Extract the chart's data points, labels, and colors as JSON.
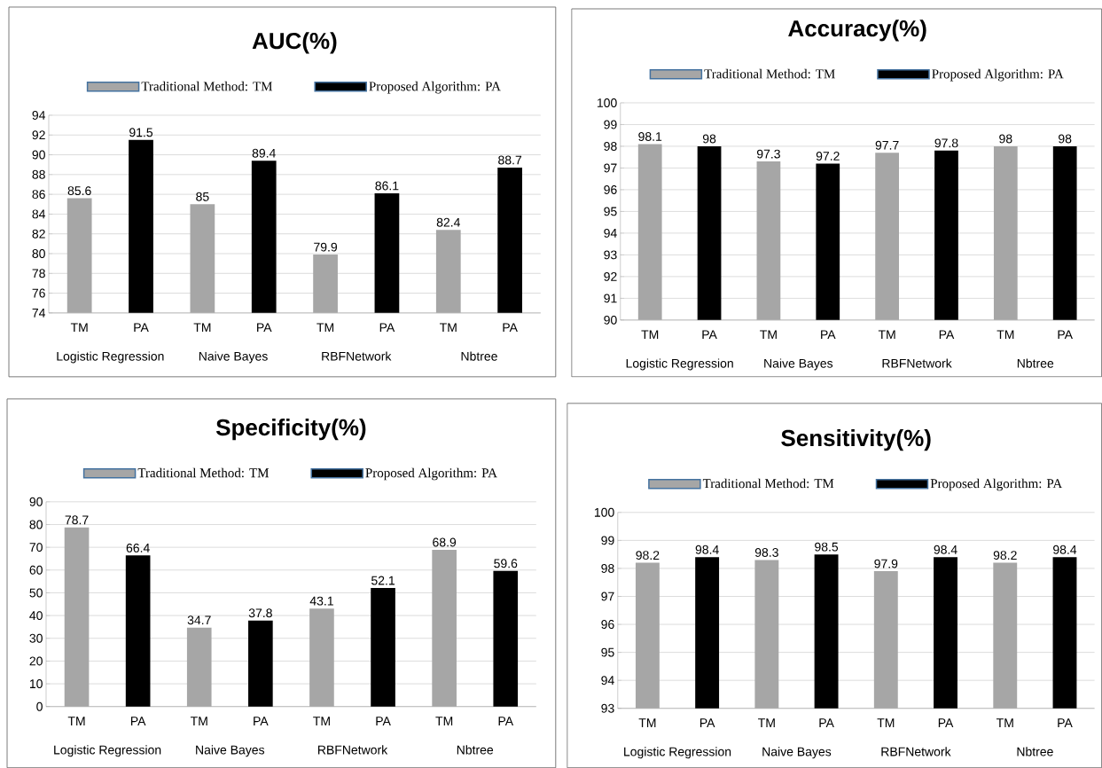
{
  "chart_data": [
    {
      "type": "bar",
      "title": "AUC(%)",
      "categories": [
        "TM",
        "PA",
        "TM",
        "PA",
        "TM",
        "PA",
        "TM",
        "PA"
      ],
      "series": [
        {
          "name": "Traditional Method: TM",
          "color": "#a6a6a6",
          "values": [
            85.6,
            null,
            85,
            null,
            79.9,
            null,
            82.4,
            null
          ]
        },
        {
          "name": "Proposed Algorithm: PA",
          "color": "#000000",
          "values": [
            null,
            91.5,
            null,
            89.4,
            null,
            86.1,
            null,
            88.7
          ]
        }
      ],
      "ylim": [
        74,
        94
      ],
      "yticks": [
        74,
        76,
        78,
        80,
        82,
        84,
        86,
        88,
        90,
        92,
        94
      ],
      "grid": "y",
      "legend": "top",
      "data_labels": true,
      "annotations": [
        "Logistic Regression",
        "Naive Bayes",
        "RBFNetwork",
        "Nbtree"
      ]
    },
    {
      "type": "bar",
      "title": "Accuracy(%)",
      "categories": [
        "TM",
        "PA",
        "TM",
        "PA",
        "TM",
        "PA",
        "TM",
        "PA"
      ],
      "series": [
        {
          "name": "Traditional Method: TM",
          "color": "#a6a6a6",
          "values": [
            98.1,
            null,
            97.3,
            null,
            97.7,
            null,
            98,
            null
          ]
        },
        {
          "name": "Proposed Algorithm: PA",
          "color": "#000000",
          "values": [
            null,
            98,
            null,
            97.2,
            null,
            97.8,
            null,
            98
          ]
        }
      ],
      "ylim": [
        90,
        100
      ],
      "yticks": [
        90,
        91,
        92,
        93,
        94,
        95,
        96,
        97,
        98,
        99,
        100
      ],
      "grid": "y",
      "legend": "top",
      "data_labels": true,
      "annotations": [
        "Logistic Regression",
        "Naive Bayes",
        "RBFNetwork",
        "Nbtree"
      ]
    },
    {
      "type": "bar",
      "title": "Specificity(%)",
      "categories": [
        "TM",
        "PA",
        "TM",
        "PA",
        "TM",
        "PA",
        "TM",
        "PA"
      ],
      "series": [
        {
          "name": "Traditional Method: TM",
          "color": "#a6a6a6",
          "values": [
            78.7,
            null,
            34.7,
            null,
            43.1,
            null,
            68.9,
            null
          ]
        },
        {
          "name": "Proposed Algorithm: PA",
          "color": "#000000",
          "values": [
            null,
            66.4,
            null,
            37.8,
            null,
            52.1,
            null,
            59.6
          ]
        }
      ],
      "ylim": [
        0,
        90
      ],
      "yticks": [
        0,
        10,
        20,
        30,
        40,
        50,
        60,
        70,
        80,
        90
      ],
      "grid": "y",
      "legend": "top",
      "data_labels": true,
      "annotations": [
        "Logistic Regression",
        "Naive Bayes",
        "RBFNetwork",
        "Nbtree"
      ]
    },
    {
      "type": "bar",
      "title": "Sensitivity(%)",
      "categories": [
        "TM",
        "PA",
        "TM",
        "PA",
        "TM",
        "PA",
        "TM",
        "PA"
      ],
      "series": [
        {
          "name": "Traditional Method: TM",
          "color": "#a6a6a6",
          "values": [
            98.2,
            null,
            98.3,
            null,
            97.9,
            null,
            98.2,
            null
          ]
        },
        {
          "name": "Proposed Algorithm: PA",
          "color": "#000000",
          "values": [
            null,
            98.4,
            null,
            98.5,
            null,
            98.4,
            null,
            98.4
          ]
        }
      ],
      "ylim": [
        93,
        100
      ],
      "yticks": [
        93,
        94,
        95,
        96,
        97,
        98,
        99,
        100
      ],
      "grid": "y",
      "legend": "top",
      "data_labels": true,
      "annotations": [
        "Logistic Regression",
        "Naive Bayes",
        "RBFNetwork",
        "Nbtree"
      ]
    }
  ]
}
